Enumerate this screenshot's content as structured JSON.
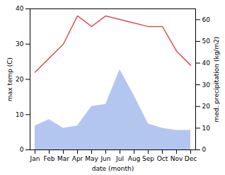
{
  "chart_data": {
    "type": "line",
    "xlabel": "date (month)",
    "ylabel": "max temp (C)",
    "y2label": "med. precipitation (kg/m2)",
    "categories": [
      "Jan",
      "Feb",
      "Mar",
      "Apr",
      "May",
      "Jun",
      "Jul",
      "Aug",
      "Sep",
      "Oct",
      "Nov",
      "Dec"
    ],
    "series": [
      {
        "type": "area",
        "axis": "y2",
        "color": "#b3c6f0",
        "values": [
          11,
          14,
          10,
          11,
          20,
          21,
          37,
          25,
          12,
          10,
          9,
          9
        ]
      },
      {
        "type": "line",
        "color": "#d9534f",
        "values": [
          22,
          26,
          30,
          38,
          35,
          38,
          37,
          36,
          35,
          35,
          28,
          24
        ]
      }
    ],
    "ylim": [
      0,
      40
    ],
    "yticks": [
      0,
      10,
      20,
      30,
      40
    ],
    "y2lim": [
      0,
      65
    ],
    "y2ticks": [
      0,
      10,
      20,
      30,
      40,
      50,
      60
    ],
    "grid": false
  }
}
